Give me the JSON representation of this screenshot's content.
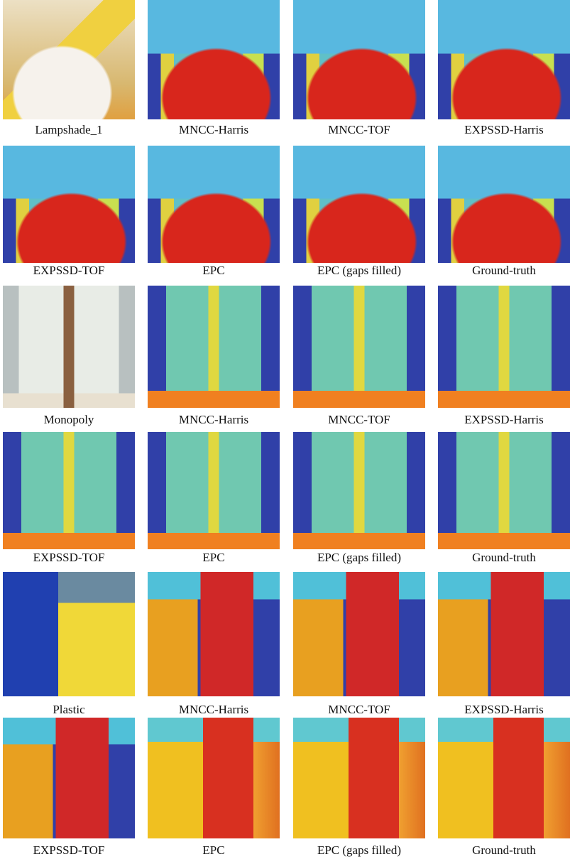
{
  "figure": {
    "rows": [
      [
        "Lampshade_1",
        "MNCC-Harris",
        "MNCC-TOF",
        "EXPSSD-Harris"
      ],
      [
        "EXPSSD-TOF",
        "EPC",
        "EPC (gaps filled)",
        "Ground-truth"
      ],
      [
        "Monopoly",
        "MNCC-Harris",
        "MNCC-TOF",
        "EXPSSD-Harris"
      ],
      [
        "EXPSSD-TOF",
        "EPC",
        "EPC (gaps filled)",
        "Ground-truth"
      ],
      [
        "Plastic",
        "MNCC-Harris",
        "MNCC-TOF",
        "EXPSSD-Harris"
      ],
      [
        "EXPSSD-TOF",
        "EPC",
        "EPC (gaps filled)",
        "Ground-truth"
      ]
    ]
  }
}
